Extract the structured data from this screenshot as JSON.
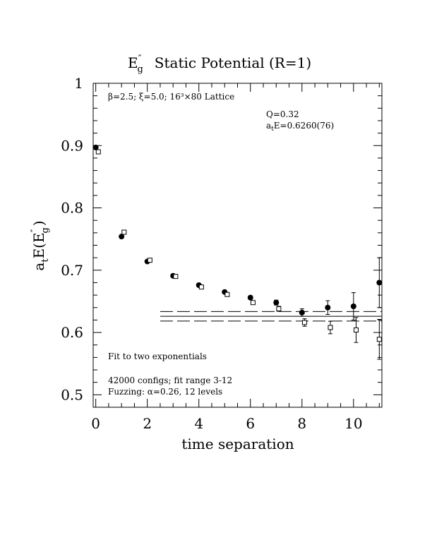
{
  "chart_data": {
    "type": "scatter",
    "title": {
      "main": "E",
      "sup": "″",
      "sub": "g",
      "rest": "Static Potential (R=1)"
    },
    "xlabel": "time separation",
    "ylabel": {
      "prefix": "a",
      "prefix_sub": "t",
      "main": "E(E",
      "sup": "″",
      "sub": "g",
      "suffix": ")"
    },
    "xlim": [
      -0.1,
      11.1
    ],
    "ylim": [
      0.48,
      1.0
    ],
    "xticks": [
      0,
      2,
      4,
      6,
      8,
      10
    ],
    "xtick_labels": [
      "0",
      "2",
      "4",
      "6",
      "8",
      "10"
    ],
    "yticks": [
      0.5,
      0.6,
      0.7,
      0.8,
      0.9,
      1.0
    ],
    "ytick_labels": [
      "0.5",
      "0.6",
      "0.7",
      "0.8",
      "0.9",
      "1"
    ],
    "annotations": {
      "lattice_params": "β=2.5; ξ=5.0; 16³×80 Lattice",
      "q_value": "Q=0.32",
      "energy_prefix": "a",
      "energy_sub": "t",
      "energy_value": "E=0.6260(76)",
      "fit_method": "Fit to two exponentials",
      "configs": "42000 configs; fit range 3-12",
      "fuzzing": "Fuzzing: α=0.26, 12 levels"
    },
    "fit": {
      "value": 0.626,
      "error": 0.0076,
      "x_range": [
        2.5,
        11.1
      ]
    },
    "series": [
      {
        "marker": "filled-circle",
        "points": [
          {
            "x": 0,
            "y": 0.897,
            "err": 0.001
          },
          {
            "x": 1,
            "y": 0.754,
            "err": 0.001
          },
          {
            "x": 2,
            "y": 0.714,
            "err": 0.001
          },
          {
            "x": 3,
            "y": 0.691,
            "err": 0.002
          },
          {
            "x": 4,
            "y": 0.676,
            "err": 0.002
          },
          {
            "x": 5,
            "y": 0.665,
            "err": 0.002
          },
          {
            "x": 6,
            "y": 0.656,
            "err": 0.003
          },
          {
            "x": 7,
            "y": 0.648,
            "err": 0.004
          },
          {
            "x": 8,
            "y": 0.632,
            "err": 0.006
          },
          {
            "x": 9,
            "y": 0.64,
            "err": 0.011
          },
          {
            "x": 10,
            "y": 0.642,
            "err": 0.022
          },
          {
            "x": 11,
            "y": 0.68,
            "err": 0.04
          }
        ]
      },
      {
        "marker": "open-square",
        "points": [
          {
            "x": 0.1,
            "y": 0.89,
            "err": 0.001
          },
          {
            "x": 1.1,
            "y": 0.761,
            "err": 0.001
          },
          {
            "x": 2.1,
            "y": 0.716,
            "err": 0.001
          },
          {
            "x": 3.1,
            "y": 0.69,
            "err": 0.001
          },
          {
            "x": 4.1,
            "y": 0.673,
            "err": 0.002
          },
          {
            "x": 5.1,
            "y": 0.661,
            "err": 0.002
          },
          {
            "x": 6.1,
            "y": 0.648,
            "err": 0.003
          },
          {
            "x": 7.1,
            "y": 0.638,
            "err": 0.004
          },
          {
            "x": 8.1,
            "y": 0.616,
            "err": 0.006
          },
          {
            "x": 9.1,
            "y": 0.608,
            "err": 0.01
          },
          {
            "x": 10.1,
            "y": 0.604,
            "err": 0.02
          },
          {
            "x": 11.0,
            "y": 0.589,
            "err": 0.032
          }
        ]
      }
    ]
  }
}
